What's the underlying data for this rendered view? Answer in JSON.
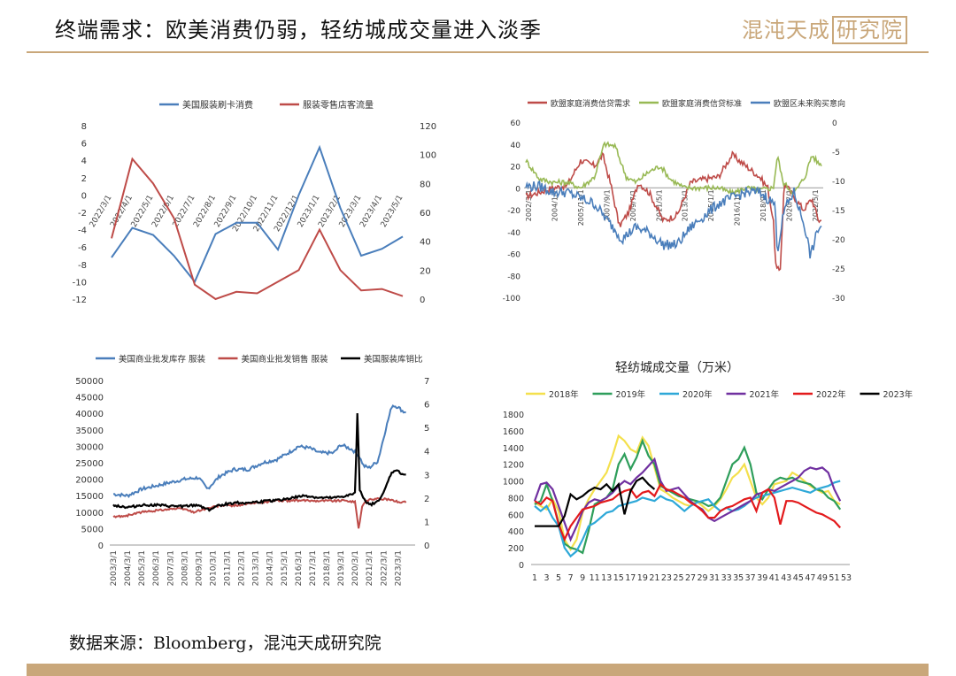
{
  "header": {
    "title": "终端需求：欧美消费仍弱，轻纺城成交量进入淡季",
    "brand_text": "混沌天成",
    "brand_box_text": "研究院"
  },
  "source": "数据来源：Bloomberg，混沌天成研究院",
  "colors": {
    "blue": "#4a7ebb",
    "red": "#be4b48",
    "green": "#98b954",
    "black": "#000000",
    "gold": "#c9a77a"
  },
  "chart_data": [
    {
      "id": "chart1",
      "type": "line",
      "categories": [
        "2022/3/1",
        "2022/4/1",
        "2022/5/1",
        "2022/6/1",
        "2022/7/1",
        "2022/8/1",
        "2022/9/1",
        "2022/10/1",
        "2022/11/1",
        "2022/12/1",
        "2023/1/1",
        "2023/2/1",
        "2023/3/1",
        "2023/4/1",
        "2023/5/1"
      ],
      "category_labels": [
        "2022/3/1",
        "2022/4/1",
        "2022/5/1",
        "2022/6/1",
        "2022/7/1",
        "2022/8/1",
        "2022/9/1",
        "2022/10/1",
        "2022/11/1",
        "2022/12/1",
        "2023/1/1",
        "2023/2/1",
        "2023/3/1",
        "2023/4/1",
        "2023/5/1"
      ],
      "series": [
        {
          "name": "美国服装刷卡消费",
          "axis": "left",
          "color": "#4a7ebb",
          "values": [
            -7.2,
            -3.8,
            -4.6,
            -7.0,
            -10.0,
            -4.5,
            -3.2,
            -3.2,
            -6.3,
            0.0,
            5.5,
            -1.5,
            -7.0,
            -6.2,
            -4.8
          ]
        },
        {
          "name": "服装零售店客流量",
          "axis": "right",
          "color": "#be4b48",
          "values": [
            42,
            97,
            80,
            56,
            10,
            0,
            5,
            4,
            12,
            20,
            48,
            20,
            6,
            7,
            2
          ]
        }
      ],
      "ylim_left": [
        -12,
        8
      ],
      "yticks_left": [
        -12,
        -10,
        -8,
        -6,
        -4,
        -2,
        0,
        2,
        4,
        6,
        8
      ],
      "ylim_right": [
        0,
        120
      ],
      "yticks_right": [
        0,
        20,
        40,
        60,
        80,
        100,
        120
      ],
      "legend": "top"
    },
    {
      "id": "chart2",
      "type": "line",
      "category_labels": [
        "2002/3/1",
        "2004/1/1",
        "2005/11/1",
        "2007/9/1",
        "2009/7/1",
        "2011/5/1",
        "2013/3/1",
        "2015/1/1",
        "2016/11/1",
        "2018/9/1",
        "2020/7/1",
        "2022/5/1"
      ],
      "x_range": [
        2002,
        2023.5
      ],
      "series": [
        {
          "name": "欧盟家庭消费信贷需求",
          "axis": "left",
          "color": "#be4b48"
        },
        {
          "name": "欧盟家庭消费信贷标准",
          "axis": "left",
          "color": "#98b954"
        },
        {
          "name": "欧盟区未来购买意向",
          "axis": "right",
          "color": "#4a7ebb"
        }
      ],
      "ylim_left": [
        -100,
        60
      ],
      "yticks_left": [
        -100,
        -80,
        -60,
        -40,
        -20,
        0,
        20,
        40,
        60
      ],
      "ylim_right": [
        -30,
        0
      ],
      "yticks_right": [
        -30,
        -25,
        -20,
        -15,
        -10,
        -5,
        0
      ],
      "legend": "top"
    },
    {
      "id": "chart3",
      "type": "line",
      "category_labels": [
        "2003/3/1",
        "2004/3/1",
        "2005/3/1",
        "2006/3/1",
        "2007/3/1",
        "2008/3/1",
        "2009/3/1",
        "2010/3/1",
        "2011/3/1",
        "2012/3/1",
        "2013/3/1",
        "2014/3/1",
        "2015/3/1",
        "2016/3/1",
        "2017/3/1",
        "2018/3/1",
        "2019/3/1",
        "2020/3/1",
        "2021/3/1",
        "2022/3/1",
        "2023/3/1"
      ],
      "x_range": [
        2003,
        2023.6
      ],
      "series": [
        {
          "name": "美国商业批发库存 服装",
          "axis": "left",
          "color": "#4a7ebb"
        },
        {
          "name": "美国商业批发销售 服装",
          "axis": "left",
          "color": "#be4b48"
        },
        {
          "name": "美国服装库销比",
          "axis": "right",
          "color": "#000000"
        }
      ],
      "ylim_left": [
        0,
        50000
      ],
      "yticks_left": [
        0,
        5000,
        10000,
        15000,
        20000,
        25000,
        30000,
        35000,
        40000,
        45000,
        50000
      ],
      "ylim_right": [
        0,
        7
      ],
      "yticks_right": [
        0,
        1,
        2,
        3,
        4,
        5,
        6,
        7
      ],
      "legend": "top"
    },
    {
      "id": "chart4",
      "type": "line",
      "title": "轻纺城成交量（万米）",
      "x_ticks": [
        1,
        3,
        5,
        7,
        9,
        11,
        13,
        15,
        17,
        19,
        21,
        23,
        25,
        27,
        29,
        31,
        33,
        35,
        37,
        39,
        41,
        43,
        45,
        47,
        49,
        51,
        53
      ],
      "ylim": [
        0,
        1800
      ],
      "yticks": [
        0,
        200,
        400,
        600,
        800,
        1000,
        1200,
        1400,
        1600,
        1800
      ],
      "series": [
        {
          "name": "2018年",
          "color": "#f4e04d",
          "values": [
            740,
            700,
            660,
            780,
            640,
            300,
            180,
            300,
            620,
            780,
            900,
            1000,
            1100,
            1300,
            1540,
            1480,
            1380,
            1340,
            1520,
            1420,
            1160,
            900,
            860,
            800,
            760,
            720,
            700,
            760,
            700,
            640,
            700,
            780,
            900,
            1040,
            1100,
            1200,
            1000,
            800,
            720,
            800,
            960,
            980,
            1000,
            1100,
            1060,
            1000,
            940,
            900,
            860,
            880,
            760,
            720
          ]
        },
        {
          "name": "2019年",
          "color": "#2e9e5b",
          "values": [
            720,
            760,
            960,
            760,
            500,
            250,
            200,
            180,
            140,
            400,
            720,
            760,
            800,
            900,
            1200,
            1320,
            1140,
            1280,
            1480,
            1300,
            1200,
            940,
            900,
            860,
            820,
            800,
            780,
            760,
            740,
            700,
            720,
            800,
            1000,
            1200,
            1260,
            1400,
            1200,
            860,
            780,
            900,
            1000,
            1040,
            1020,
            1040,
            1000,
            980,
            960,
            900,
            880,
            800,
            760,
            660
          ]
        },
        {
          "name": "2020年",
          "color": "#2ea8d8",
          "values": [
            700,
            640,
            700,
            560,
            460,
            200,
            100,
            160,
            300,
            460,
            500,
            560,
            620,
            640,
            700,
            720,
            740,
            760,
            800,
            780,
            760,
            820,
            780,
            760,
            700,
            640,
            700,
            740,
            760,
            780,
            700,
            640,
            680,
            640,
            660,
            700,
            760,
            800,
            820,
            840,
            860,
            880,
            900,
            920,
            900,
            880,
            860,
            900,
            920,
            940,
            980,
            1000
          ]
        },
        {
          "name": "2021年",
          "color": "#7030a0",
          "values": [
            760,
            960,
            980,
            900,
            700,
            500,
            300,
            460,
            640,
            740,
            780,
            760,
            800,
            860,
            940,
            1000,
            960,
            1040,
            1100,
            1180,
            1260,
            1000,
            880,
            900,
            920,
            840,
            760,
            700,
            660,
            560,
            520,
            560,
            600,
            640,
            680,
            720,
            760,
            840,
            860,
            900,
            880,
            920,
            960,
            1000,
            1040,
            1120,
            1160,
            1140,
            1160,
            1100,
            900,
            760
          ]
        },
        {
          "name": "2022年",
          "color": "#e31a1c",
          "values": [
            760,
            720,
            800,
            760,
            480,
            300,
            460,
            560,
            660,
            680,
            700,
            740,
            760,
            780,
            840,
            880,
            900,
            800,
            860,
            880,
            820,
            960,
            900,
            880,
            840,
            800,
            740,
            700,
            640,
            560,
            560,
            640,
            680,
            700,
            740,
            780,
            800,
            640,
            860,
            900,
            800,
            480,
            760,
            760,
            740,
            700,
            660,
            620,
            600,
            560,
            520,
            440
          ]
        },
        {
          "name": "2023年",
          "color": "#000000",
          "values": [
            460,
            460,
            460,
            460,
            460,
            580,
            840,
            780,
            820,
            880,
            920,
            900,
            960,
            880,
            960,
            600,
            880,
            1000,
            1040,
            960,
            900
          ]
        }
      ],
      "legend": "top"
    }
  ]
}
